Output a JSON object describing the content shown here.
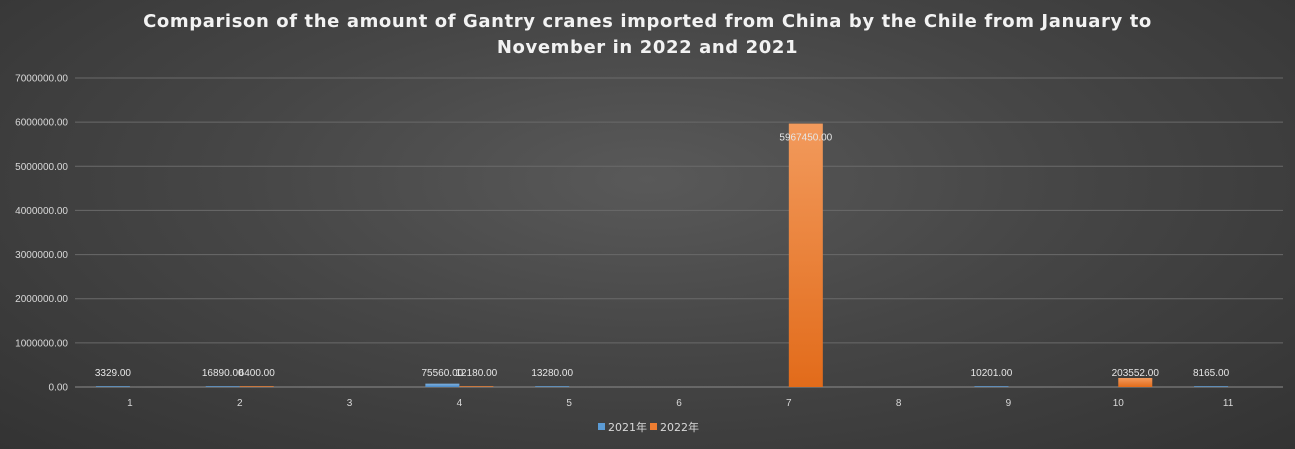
{
  "chart_data": {
    "type": "bar",
    "title": "Comparison of the amount of Gantry cranes imported from China by the Chile from January to November in 2022 and 2021",
    "categories": [
      "1",
      "2",
      "3",
      "4",
      "5",
      "6",
      "7",
      "8",
      "9",
      "10",
      "11"
    ],
    "series": [
      {
        "name": "2021年",
        "color": "#5b9bd5",
        "values": [
          3329.0,
          16890.0,
          null,
          75560.0,
          13280.0,
          null,
          null,
          null,
          10201.0,
          null,
          8165.0
        ]
      },
      {
        "name": "2022年",
        "color": "#ed7d31",
        "values": [
          null,
          6400.0,
          null,
          12180.0,
          null,
          null,
          5967450.0,
          null,
          null,
          203552.0,
          null
        ]
      }
    ],
    "ylim": [
      0,
      7000000
    ],
    "yticks": [
      "0.00",
      "1000000.00",
      "2000000.00",
      "3000000.00",
      "4000000.00",
      "5000000.00",
      "6000000.00",
      "7000000.00"
    ],
    "ytick_values": [
      0,
      1000000,
      2000000,
      3000000,
      4000000,
      5000000,
      6000000,
      7000000
    ],
    "xlabel": "",
    "ylabel": "",
    "grid": true,
    "legend": "bottom"
  }
}
